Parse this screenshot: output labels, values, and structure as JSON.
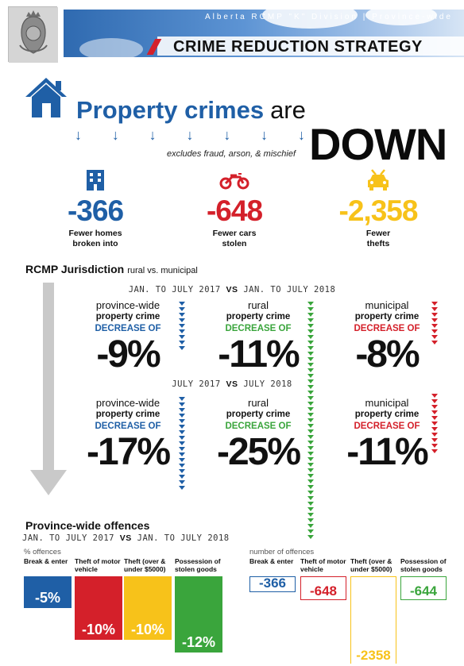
{
  "header": {
    "subtitle": "Alberta RCMP \"K\" Division   |   Province-wide",
    "title": "CRIME REDUCTION STRATEGY",
    "crest_icon": "rcmp-crest-icon"
  },
  "hero": {
    "title_bold": "Property crimes",
    "title_rest": "are",
    "headline": "DOWN",
    "excludes": "excludes fraud, arson, & mischief",
    "arrow_glyph": "↓"
  },
  "stats": [
    {
      "icon": "building-icon",
      "value": "-366",
      "label_1": "Fewer homes",
      "label_2": "broken into",
      "color": "#1f5fa6"
    },
    {
      "icon": "motorcycle-icon",
      "value": "-648",
      "label_1": "Fewer cars",
      "label_2": "stolen",
      "color": "#d4202a"
    },
    {
      "icon": "car-icon",
      "value": "-2,358",
      "label_1": "Fewer",
      "label_2": "thefts",
      "color": "#f7c21a"
    }
  ],
  "jurisdiction": {
    "title": "RCMP Jurisdiction",
    "subtitle": "rural vs. municipal",
    "period_1": {
      "a": "JAN. TO JULY 2017",
      "vs": "VS",
      "b": "JAN. TO JULY 2018"
    },
    "period_2": {
      "a": "JULY 2017",
      "vs": "VS",
      "b": "JULY 2018"
    },
    "row_1": [
      {
        "scope": "province-wide",
        "label": "property crime",
        "change": "DECREASE OF",
        "value": "-9%"
      },
      {
        "scope": "rural",
        "label": "property crime",
        "change": "DECREASE OF",
        "value": "-11%"
      },
      {
        "scope": "municipal",
        "label": "property crime",
        "change": "DECREASE OF",
        "value": "-8%"
      }
    ],
    "row_2": [
      {
        "scope": "province-wide",
        "label": "property crime",
        "change": "DECREASE OF",
        "value": "-17%"
      },
      {
        "scope": "rural",
        "label": "property crime",
        "change": "DECREASE OF",
        "value": "-25%"
      },
      {
        "scope": "municipal",
        "label": "property crime",
        "change": "DECREASE OF",
        "value": "-11%"
      }
    ]
  },
  "offences": {
    "title": "Province-wide offences",
    "period": {
      "a": "JAN. TO JULY 2017",
      "vs": "VS",
      "b": "JAN. TO JULY 2018"
    },
    "pct_unit": "% offences",
    "num_unit": "number of offences",
    "categories": [
      {
        "l1": "Break & enter",
        "l2": ""
      },
      {
        "l1": "Theft of motor",
        "l2": "vehicle"
      },
      {
        "l1": "Theft (over &",
        "l2": "under $5000)"
      },
      {
        "l1": "Possession of",
        "l2": "stolen goods"
      }
    ]
  },
  "colors": {
    "blue": "#1f5fa6",
    "red": "#d4202a",
    "yellow": "#f7c21a",
    "green": "#3aa53c"
  },
  "chart_data": [
    {
      "type": "bar",
      "title": "",
      "ylabel": "% offences",
      "categories": [
        "Break & enter",
        "Theft of motor vehicle",
        "Theft (over & under $5000)",
        "Possession of stolen goods"
      ],
      "values": [
        -5,
        -10,
        -10,
        -12
      ],
      "labels": [
        "-5%",
        "-10%",
        "-10%",
        "-12%"
      ],
      "colors": [
        "#1f5fa6",
        "#d4202a",
        "#f7c21a",
        "#3aa53c"
      ]
    },
    {
      "type": "bar",
      "title": "",
      "ylabel": "number of offences",
      "categories": [
        "Break & enter",
        "Theft of motor vehicle",
        "Theft (over & under $5000)",
        "Possession of stolen goods"
      ],
      "values": [
        -366,
        -648,
        -2358,
        -644
      ],
      "labels": [
        "-366",
        "-648",
        "-2358",
        "-644"
      ],
      "colors": [
        "#1f5fa6",
        "#d4202a",
        "#f7c21a",
        "#3aa53c"
      ]
    }
  ]
}
